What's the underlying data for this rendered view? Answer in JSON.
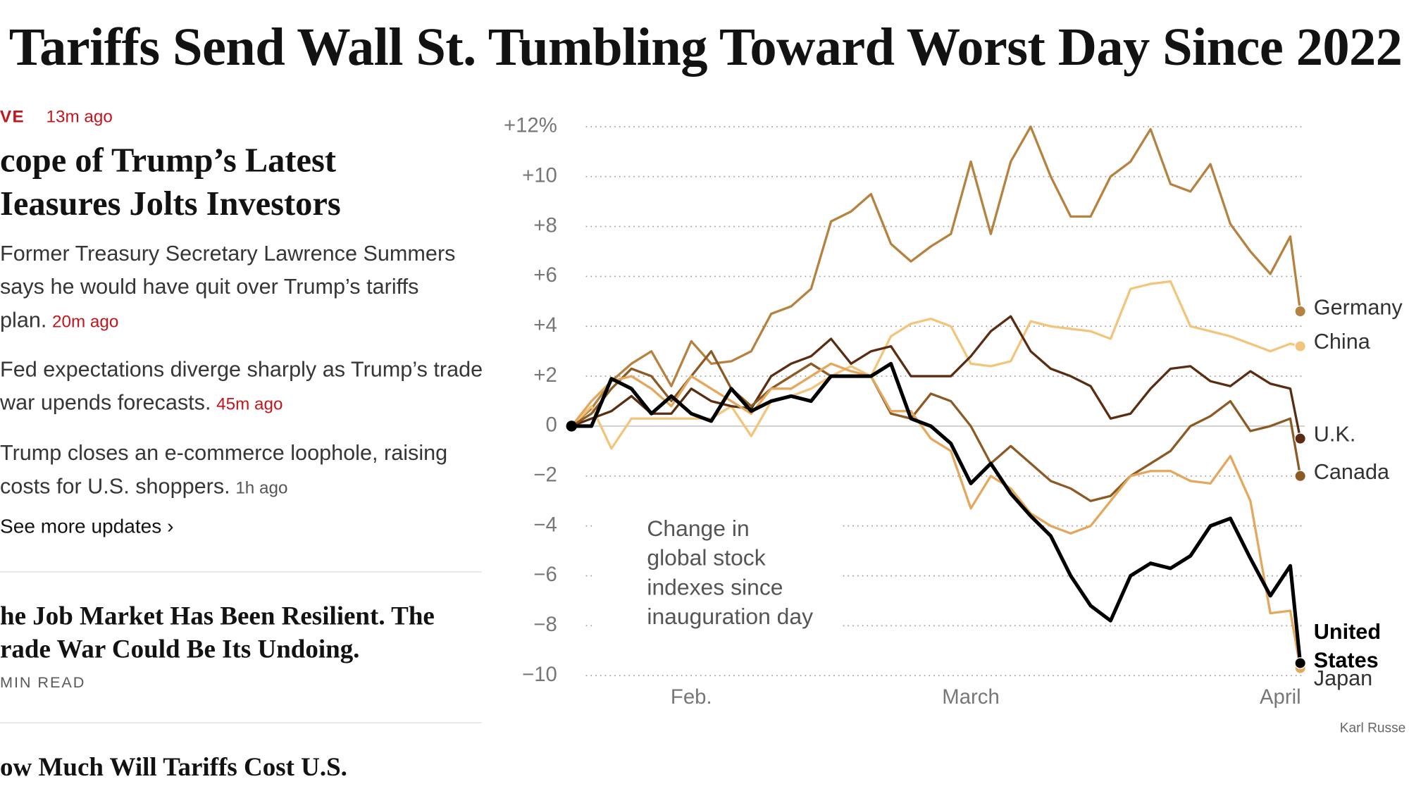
{
  "header": {
    "title": "Tariffs Send Wall St. Tumbling Toward Worst Day Since 2022"
  },
  "sidebar": {
    "live": {
      "label": "VE",
      "time": "13m ago"
    },
    "lead": {
      "headline_lines": [
        "cope of Trump’s Latest",
        "Ieasures Jolts Investors"
      ],
      "updates": [
        {
          "text": "Former Treasury Secretary Lawrence Summers says he would have quit over Trump’s tariffs plan.",
          "time": "20m ago"
        },
        {
          "text": "Fed expectations diverge sharply as Trump’s trade war upends forecasts.",
          "time": "45m ago"
        },
        {
          "text": "Trump closes an e-commerce loophole, raising costs for U.S. shoppers.",
          "time": "1h ago"
        }
      ],
      "more": "See more updates ›"
    },
    "stories": [
      {
        "headline_lines": [
          "he Job Market Has Been Resilient. The",
          "rade War Could Be Its Undoing."
        ],
        "meta": "MIN READ"
      },
      {
        "headline_lines": [
          "ow Much Will Tariffs Cost U.S."
        ]
      }
    ]
  },
  "chart_data": {
    "type": "line",
    "annotation": [
      "Change in",
      "global stock",
      "indexes since",
      "inauguration day"
    ],
    "credit": "Karl Russe",
    "x": [
      0,
      2,
      4,
      6,
      8,
      10,
      12,
      14,
      16,
      18,
      20,
      22,
      24,
      26,
      28,
      30,
      32,
      34,
      36,
      38,
      40,
      42,
      44,
      46,
      48,
      50,
      52,
      54,
      56,
      58,
      60,
      62,
      64,
      66,
      68,
      70,
      72,
      73
    ],
    "xlim": [
      0,
      73
    ],
    "xticks": [
      {
        "value": 12,
        "label": "Feb."
      },
      {
        "value": 40,
        "label": "March"
      },
      {
        "value": 71,
        "label": "April"
      }
    ],
    "ylim": [
      -10,
      12
    ],
    "yticks": [
      {
        "value": 12,
        "label": "+12%"
      },
      {
        "value": 10,
        "label": "+10"
      },
      {
        "value": 8,
        "label": "+8"
      },
      {
        "value": 6,
        "label": "+6"
      },
      {
        "value": 4,
        "label": "+4"
      },
      {
        "value": 2,
        "label": "+2"
      },
      0,
      {
        "value": -2,
        "label": "−2"
      },
      {
        "value": -4,
        "label": "−4"
      },
      {
        "value": -6,
        "label": "−6"
      },
      {
        "value": -8,
        "label": "−8"
      },
      {
        "value": -10,
        "label": "−10"
      }
    ],
    "grid": true,
    "series": [
      {
        "name": "Germany",
        "color": "#b5823f",
        "values": [
          0,
          0.7,
          1.8,
          2.5,
          3.0,
          1.6,
          3.4,
          2.5,
          2.6,
          3.0,
          4.5,
          4.8,
          5.5,
          8.2,
          8.6,
          9.3,
          7.3,
          6.6,
          7.2,
          7.7,
          10.6,
          7.7,
          10.6,
          12.0,
          10.0,
          8.4,
          8.4,
          10.0,
          10.6,
          11.9,
          9.7,
          9.4,
          10.5,
          8.1,
          7.0,
          6.1,
          7.6,
          4.6
        ]
      },
      {
        "name": "China",
        "color": "#f2c57c",
        "values": [
          0,
          0.8,
          -0.9,
          0.3,
          0.3,
          0.3,
          0.3,
          0.3,
          0.8,
          -0.4,
          1.0,
          1.2,
          1.5,
          2.0,
          2.4,
          2.0,
          3.6,
          4.1,
          4.3,
          4.0,
          2.5,
          2.4,
          2.6,
          4.2,
          4.0,
          3.9,
          3.8,
          3.5,
          5.5,
          5.7,
          5.8,
          4.0,
          3.8,
          3.6,
          3.3,
          3.0,
          3.3,
          3.2
        ]
      },
      {
        "name": "U.K.",
        "color": "#5a2d12",
        "values": [
          0,
          0.3,
          0.6,
          1.2,
          0.5,
          0.5,
          1.5,
          1.0,
          0.8,
          0.7,
          2.0,
          2.5,
          2.8,
          3.5,
          2.5,
          3.0,
          3.2,
          2.0,
          2.0,
          2.0,
          2.8,
          3.8,
          4.4,
          3.0,
          2.3,
          2.0,
          1.6,
          0.3,
          0.5,
          1.5,
          2.3,
          2.4,
          1.8,
          1.6,
          2.2,
          1.7,
          1.5,
          -0.5
        ]
      },
      {
        "name": "Canada",
        "color": "#8c5a24",
        "values": [
          0,
          0.5,
          1.5,
          2.3,
          2.0,
          1.0,
          2.0,
          3.0,
          1.5,
          0.8,
          1.5,
          2.0,
          2.5,
          2.0,
          2.0,
          2.0,
          0.5,
          0.3,
          1.3,
          1.0,
          0,
          -1.5,
          -0.8,
          -1.5,
          -2.2,
          -2.5,
          -3.0,
          -2.8,
          -2.0,
          -1.5,
          -1.0,
          0,
          0.4,
          1.0,
          -0.2,
          0,
          0.3,
          -2.0
        ]
      },
      {
        "name": "Japan",
        "color": "#e3a85e",
        "values": [
          0,
          1.0,
          1.8,
          2.0,
          1.5,
          0.8,
          2.0,
          1.5,
          1.0,
          0.5,
          1.5,
          1.5,
          2.0,
          2.5,
          2.2,
          2.0,
          0.6,
          0.6,
          -0.5,
          -1.0,
          -3.3,
          -2.0,
          -2.5,
          -3.5,
          -4.0,
          -4.3,
          -4.0,
          -3.0,
          -2.0,
          -1.8,
          -1.8,
          -2.2,
          -2.3,
          -1.2,
          -3.0,
          -7.5,
          -7.4,
          -9.7
        ]
      },
      {
        "name": "United States",
        "color": "#000000",
        "values": [
          0,
          0,
          1.9,
          1.5,
          0.5,
          1.2,
          0.5,
          0.2,
          1.5,
          0.6,
          1.0,
          1.2,
          1.0,
          2.0,
          2.0,
          2.0,
          2.5,
          0.3,
          0,
          -0.7,
          -2.3,
          -1.5,
          -2.7,
          -3.6,
          -4.4,
          -6.0,
          -7.2,
          -7.8,
          -6.0,
          -5.5,
          -5.7,
          -5.2,
          -4.0,
          -3.7,
          -5.3,
          -6.8,
          -5.6,
          -9.5
        ]
      }
    ]
  }
}
